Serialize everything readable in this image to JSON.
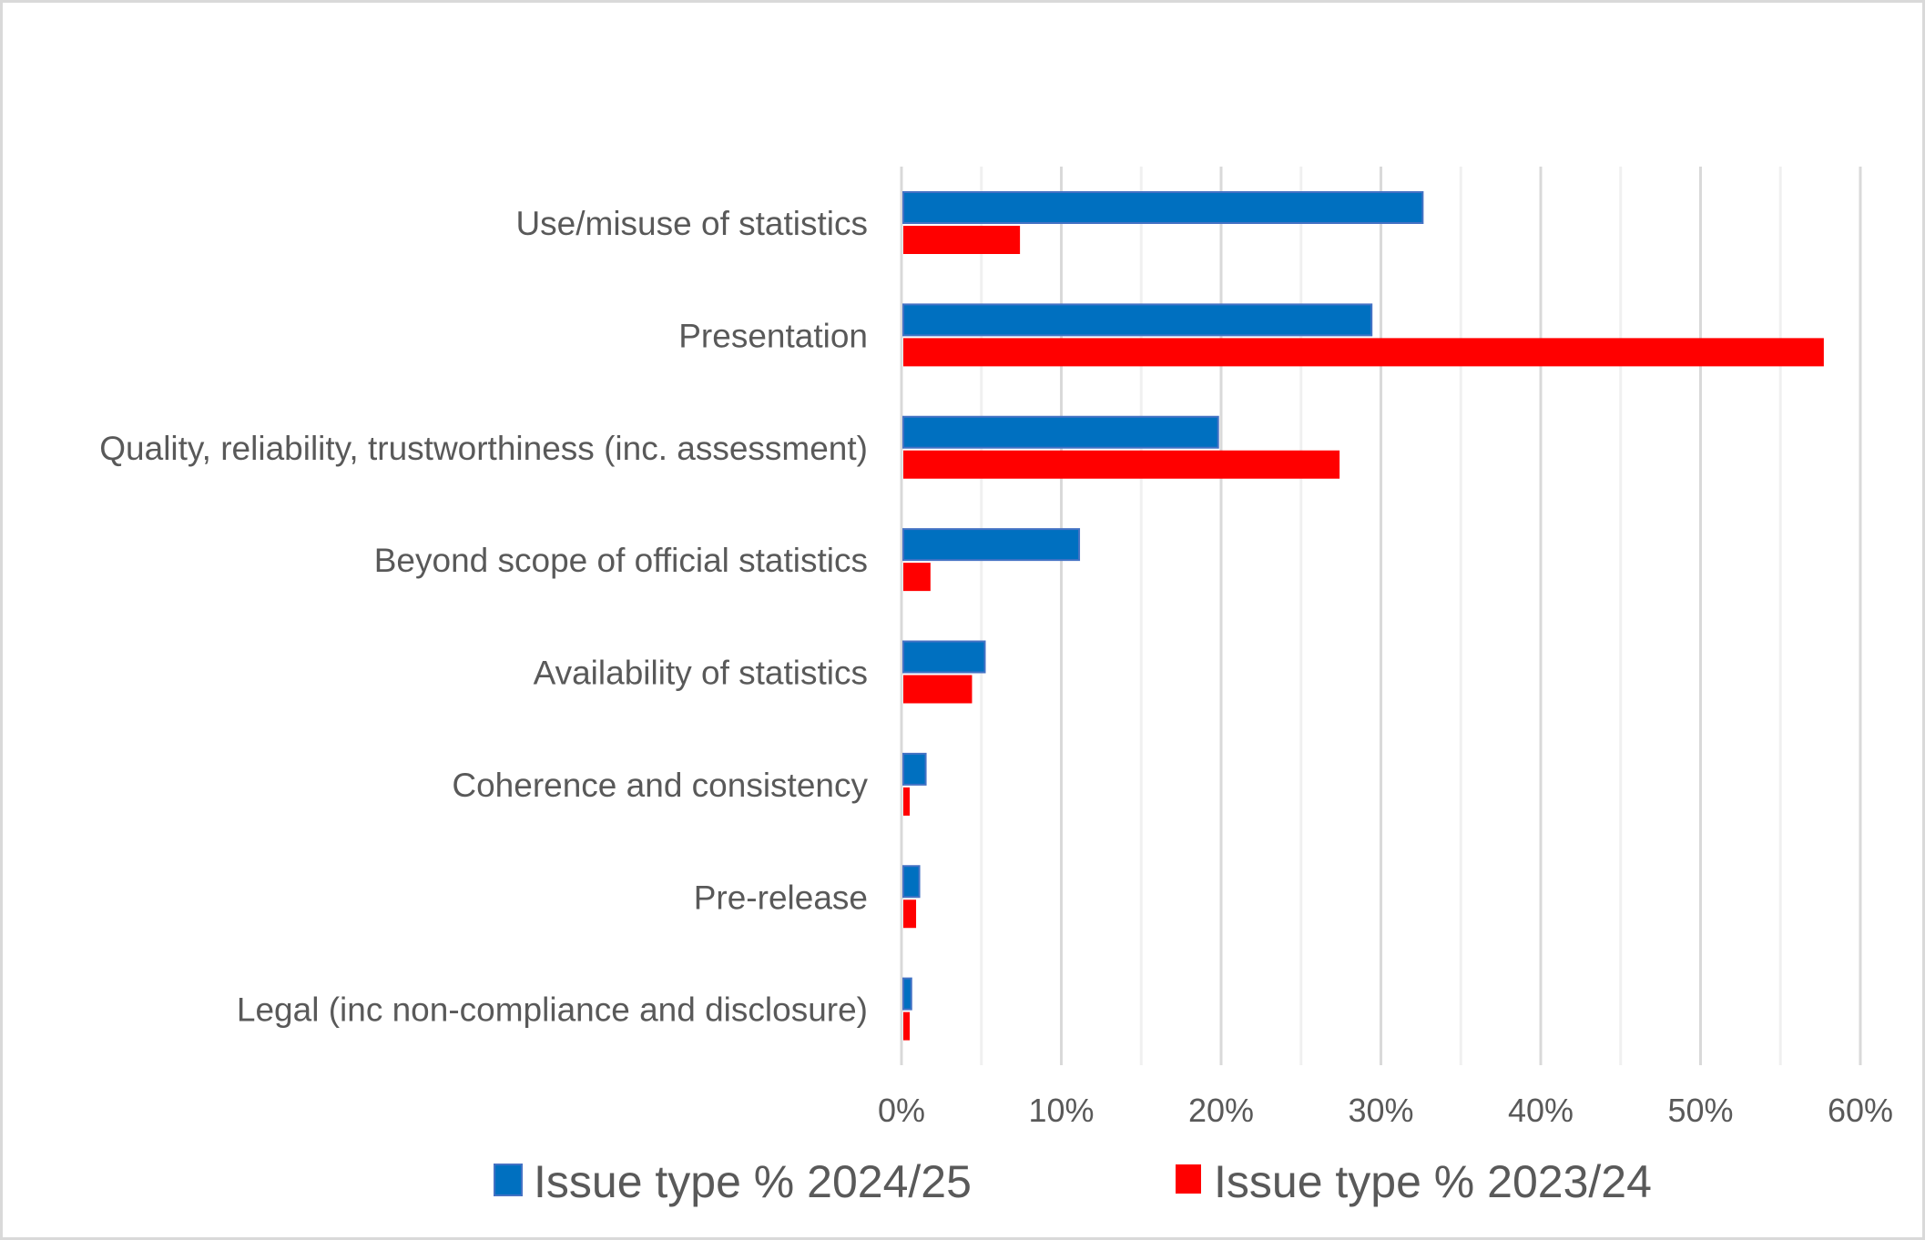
{
  "chart_data": {
    "type": "bar",
    "orientation": "horizontal",
    "title": "",
    "xlabel": "",
    "ylabel": "",
    "categories": [
      "Use/misuse of statistics",
      "Presentation",
      "Quality, reliability, trustworthiness (inc. assessment)",
      "Beyond scope of official statistics",
      "Availability of statistics",
      "Coherence and consistency",
      "Pre-release",
      "Legal (inc non-compliance and disclosure)"
    ],
    "series": [
      {
        "name": "Issue type % 2024/25",
        "color": "#0070C0",
        "values": [
          32.5,
          29.3,
          19.7,
          11.0,
          5.1,
          1.4,
          1.0,
          0.5
        ]
      },
      {
        "name": "Issue type % 2023/24",
        "color": "#FF0000",
        "values": [
          7.3,
          57.6,
          27.3,
          1.7,
          4.3,
          0.4,
          0.8,
          0.4
        ]
      }
    ],
    "xlim": [
      0,
      60
    ],
    "x_ticks": [
      0,
      10,
      20,
      30,
      40,
      50,
      60
    ],
    "x_tick_labels": [
      "0%",
      "10%",
      "20%",
      "30%",
      "40%",
      "50%",
      "60%"
    ],
    "value_unit": "%",
    "grid": "vertical major and minor",
    "legend": "bottom"
  }
}
